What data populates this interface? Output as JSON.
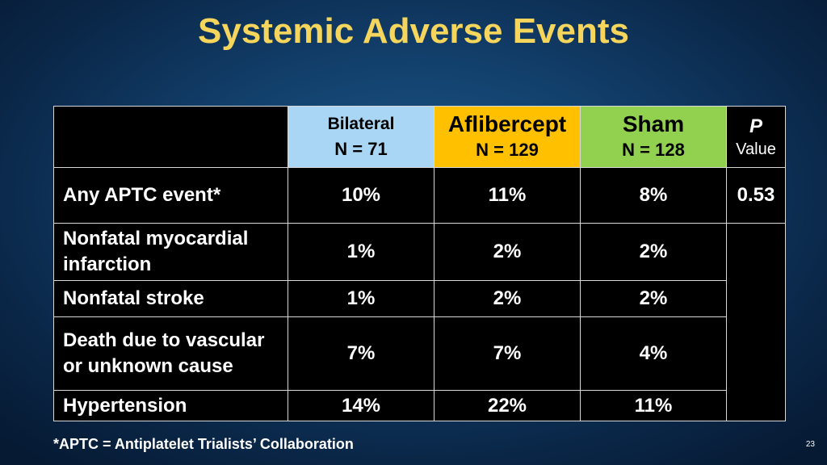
{
  "title": "Systemic Adverse Events",
  "columns": [
    {
      "label": "Bilateral",
      "n": "N = 71",
      "color": "#a9d6f5"
    },
    {
      "label": "Aflibercept",
      "n": "N = 129",
      "color": "#ffc000"
    },
    {
      "label": "Sham",
      "n": "N = 128",
      "color": "#92d050"
    }
  ],
  "p_header": {
    "p": "P",
    "value": "Value"
  },
  "rows": [
    {
      "label": "Any APTC event*",
      "values": [
        "10%",
        "11%",
        "8%"
      ],
      "p": "0.53"
    },
    {
      "label": "Nonfatal myocardial infarction",
      "values": [
        "1%",
        "2%",
        "2%"
      ]
    },
    {
      "label": "Nonfatal stroke",
      "values": [
        "1%",
        "2%",
        "2%"
      ]
    },
    {
      "label": "Death due to vascular or unknown cause",
      "values": [
        "7%",
        "7%",
        "4%"
      ]
    },
    {
      "label": "Hypertension",
      "values": [
        "14%",
        "22%",
        "11%"
      ]
    }
  ],
  "footnote": "*APTC = Antiplatelet Trialists’ Collaboration",
  "page_number": "23"
}
